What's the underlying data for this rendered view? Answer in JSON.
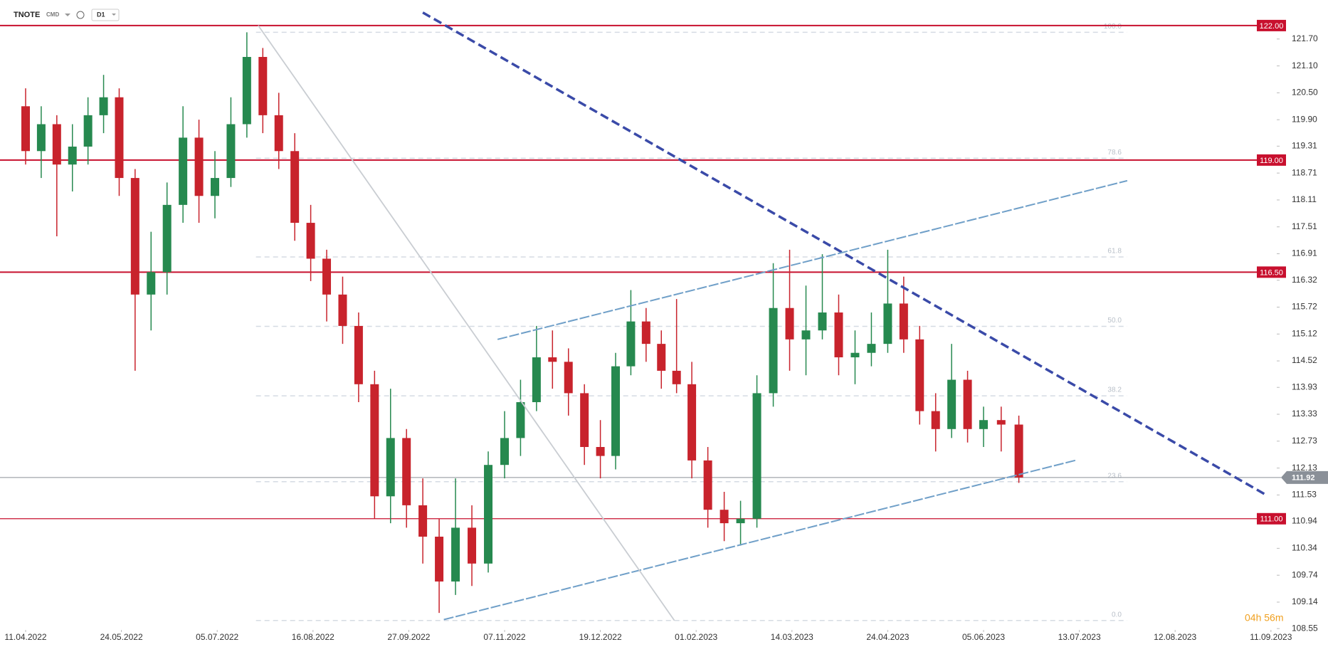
{
  "chart_data": {
    "type": "candlestick",
    "symbol": "TNOTE",
    "market": "CMD",
    "timeframe": "D1",
    "countdown": "04h 56m",
    "up_color": "#26894f",
    "down_color": "#c8232c",
    "ylim": [
      108.52,
      122.57
    ],
    "yticks": [
      {
        "value": 121.7,
        "label": "121.70"
      },
      {
        "value": 121.1,
        "label": "121.10"
      },
      {
        "value": 120.5,
        "label": "120.50"
      },
      {
        "value": 119.9,
        "label": "119.90"
      },
      119.31,
      118.71,
      118.11,
      117.51,
      116.91,
      116.32,
      115.72,
      115.12,
      114.52,
      113.93,
      113.33,
      112.73,
      112.13,
      111.53,
      110.94,
      110.34,
      109.74,
      109.14,
      108.55
    ],
    "xticks": [
      "11.04.2022",
      "24.05.2022",
      "05.07.2022",
      "16.08.2022",
      "27.09.2022",
      "07.11.2022",
      "19.12.2022",
      "01.02.2023",
      "14.03.2023",
      "24.04.2023",
      "05.06.2023",
      "13.07.2023",
      "12.08.2023",
      "11.09.2023"
    ],
    "candles": [
      {
        "x": "11.04.2022",
        "o": 120.2,
        "h": 120.6,
        "l": 118.9,
        "c": 119.2
      },
      {
        "x": "18.04.2022",
        "o": 119.2,
        "h": 120.2,
        "l": 118.6,
        "c": 119.8
      },
      {
        "x": "25.04.2022",
        "o": 119.8,
        "h": 120.0,
        "l": 117.3,
        "c": 118.9
      },
      {
        "x": "02.05.2022",
        "o": 118.9,
        "h": 119.8,
        "l": 118.3,
        "c": 119.3
      },
      {
        "x": "09.05.2022",
        "o": 119.3,
        "h": 120.4,
        "l": 118.9,
        "c": 120.0
      },
      {
        "x": "16.05.2022",
        "o": 120.0,
        "h": 120.9,
        "l": 119.6,
        "c": 120.4
      },
      {
        "x": "23.05.2022",
        "o": 120.4,
        "h": 120.6,
        "l": 118.2,
        "c": 118.6
      },
      {
        "x": "30.05.2022",
        "o": 118.6,
        "h": 118.8,
        "l": 114.3,
        "c": 116.0
      },
      {
        "x": "06.06.2022",
        "o": 116.0,
        "h": 117.4,
        "l": 115.2,
        "c": 116.5
      },
      {
        "x": "13.06.2022",
        "o": 116.5,
        "h": 118.5,
        "l": 116.0,
        "c": 118.0
      },
      {
        "x": "20.06.2022",
        "o": 118.0,
        "h": 120.2,
        "l": 117.6,
        "c": 119.5
      },
      {
        "x": "27.06.2022",
        "o": 119.5,
        "h": 119.9,
        "l": 117.6,
        "c": 118.2
      },
      {
        "x": "04.07.2022",
        "o": 118.2,
        "h": 119.2,
        "l": 117.7,
        "c": 118.6
      },
      {
        "x": "11.07.2022",
        "o": 118.6,
        "h": 120.4,
        "l": 118.4,
        "c": 119.8
      },
      {
        "x": "18.07.2022",
        "o": 119.8,
        "h": 121.85,
        "l": 119.5,
        "c": 121.3
      },
      {
        "x": "25.07.2022",
        "o": 121.3,
        "h": 121.5,
        "l": 119.6,
        "c": 120.0
      },
      {
        "x": "01.08.2022",
        "o": 120.0,
        "h": 120.5,
        "l": 118.8,
        "c": 119.2
      },
      {
        "x": "08.08.2022",
        "o": 119.2,
        "h": 119.6,
        "l": 117.2,
        "c": 117.6
      },
      {
        "x": "15.08.2022",
        "o": 117.6,
        "h": 118.0,
        "l": 116.3,
        "c": 116.8
      },
      {
        "x": "22.08.2022",
        "o": 116.8,
        "h": 117.0,
        "l": 115.4,
        "c": 116.0
      },
      {
        "x": "29.08.2022",
        "o": 116.0,
        "h": 116.4,
        "l": 114.9,
        "c": 115.3
      },
      {
        "x": "05.09.2022",
        "o": 115.3,
        "h": 115.6,
        "l": 113.6,
        "c": 114.0
      },
      {
        "x": "12.09.2022",
        "o": 114.0,
        "h": 114.3,
        "l": 111.0,
        "c": 111.5
      },
      {
        "x": "19.09.2022",
        "o": 111.5,
        "h": 113.9,
        "l": 110.9,
        "c": 112.8
      },
      {
        "x": "26.09.2022",
        "o": 112.8,
        "h": 113.0,
        "l": 110.8,
        "c": 111.3
      },
      {
        "x": "03.10.2022",
        "o": 111.3,
        "h": 111.9,
        "l": 110.0,
        "c": 110.6
      },
      {
        "x": "10.10.2022",
        "o": 110.6,
        "h": 111.0,
        "l": 108.9,
        "c": 109.6
      },
      {
        "x": "17.10.2022",
        "o": 109.6,
        "h": 111.9,
        "l": 109.3,
        "c": 110.8
      },
      {
        "x": "24.10.2022",
        "o": 110.8,
        "h": 111.3,
        "l": 109.5,
        "c": 110.0
      },
      {
        "x": "31.10.2022",
        "o": 110.0,
        "h": 112.5,
        "l": 109.8,
        "c": 112.2
      },
      {
        "x": "07.11.2022",
        "o": 112.2,
        "h": 113.4,
        "l": 111.9,
        "c": 112.8
      },
      {
        "x": "14.11.2022",
        "o": 112.8,
        "h": 114.1,
        "l": 112.4,
        "c": 113.6
      },
      {
        "x": "21.11.2022",
        "o": 113.6,
        "h": 115.3,
        "l": 113.4,
        "c": 114.6
      },
      {
        "x": "28.11.2022",
        "o": 114.6,
        "h": 115.2,
        "l": 113.9,
        "c": 114.5
      },
      {
        "x": "05.12.2022",
        "o": 114.5,
        "h": 114.8,
        "l": 113.3,
        "c": 113.8
      },
      {
        "x": "12.12.2022",
        "o": 113.8,
        "h": 114.0,
        "l": 112.2,
        "c": 112.6
      },
      {
        "x": "19.12.2022",
        "o": 112.6,
        "h": 113.2,
        "l": 111.9,
        "c": 112.4
      },
      {
        "x": "26.12.2022",
        "o": 112.4,
        "h": 114.7,
        "l": 112.1,
        "c": 114.4
      },
      {
        "x": "02.01.2023",
        "o": 114.4,
        "h": 116.1,
        "l": 114.2,
        "c": 115.4
      },
      {
        "x": "09.01.2023",
        "o": 115.4,
        "h": 115.7,
        "l": 114.5,
        "c": 114.9
      },
      {
        "x": "16.01.2023",
        "o": 114.9,
        "h": 115.2,
        "l": 113.9,
        "c": 114.3
      },
      {
        "x": "23.01.2023",
        "o": 114.3,
        "h": 115.9,
        "l": 113.8,
        "c": 114.0
      },
      {
        "x": "30.01.2023",
        "o": 114.0,
        "h": 114.5,
        "l": 111.9,
        "c": 112.3
      },
      {
        "x": "06.02.2023",
        "o": 112.3,
        "h": 112.6,
        "l": 110.8,
        "c": 111.2
      },
      {
        "x": "13.02.2023",
        "o": 111.2,
        "h": 111.6,
        "l": 110.5,
        "c": 110.9
      },
      {
        "x": "20.02.2023",
        "o": 110.9,
        "h": 111.4,
        "l": 110.4,
        "c": 111.0
      },
      {
        "x": "27.02.2023",
        "o": 111.0,
        "h": 114.2,
        "l": 110.8,
        "c": 113.8
      },
      {
        "x": "06.03.2023",
        "o": 113.8,
        "h": 116.7,
        "l": 113.5,
        "c": 115.7
      },
      {
        "x": "13.03.2023",
        "o": 115.7,
        "h": 117.0,
        "l": 114.3,
        "c": 115.0
      },
      {
        "x": "20.03.2023",
        "o": 115.0,
        "h": 116.2,
        "l": 114.2,
        "c": 115.2
      },
      {
        "x": "27.03.2023",
        "o": 115.2,
        "h": 116.9,
        "l": 115.0,
        "c": 115.6
      },
      {
        "x": "03.04.2023",
        "o": 115.6,
        "h": 116.0,
        "l": 114.2,
        "c": 114.6
      },
      {
        "x": "10.04.2023",
        "o": 114.6,
        "h": 115.2,
        "l": 114.0,
        "c": 114.7
      },
      {
        "x": "17.04.2023",
        "o": 114.7,
        "h": 115.6,
        "l": 114.4,
        "c": 114.9
      },
      {
        "x": "24.04.2023",
        "o": 114.9,
        "h": 117.0,
        "l": 114.7,
        "c": 115.8
      },
      {
        "x": "01.05.2023",
        "o": 115.8,
        "h": 116.4,
        "l": 114.7,
        "c": 115.0
      },
      {
        "x": "08.05.2023",
        "o": 115.0,
        "h": 115.3,
        "l": 113.1,
        "c": 113.4
      },
      {
        "x": "15.05.2023",
        "o": 113.4,
        "h": 113.8,
        "l": 112.5,
        "c": 113.0
      },
      {
        "x": "22.05.2023",
        "o": 113.0,
        "h": 114.9,
        "l": 112.8,
        "c": 114.1
      },
      {
        "x": "29.05.2023",
        "o": 114.1,
        "h": 114.3,
        "l": 112.7,
        "c": 113.0
      },
      {
        "x": "05.06.2023",
        "o": 113.0,
        "h": 113.5,
        "l": 112.6,
        "c": 113.2
      },
      {
        "x": "12.06.2023",
        "o": 113.2,
        "h": 113.5,
        "l": 112.5,
        "c": 113.1
      },
      {
        "x": "19.06.2023",
        "o": 113.1,
        "h": 113.3,
        "l": 111.8,
        "c": 111.92
      }
    ],
    "levels": [
      {
        "value": 122,
        "label": "122.00",
        "color": "#c8102e"
      },
      {
        "value": 119,
        "label": "119.00",
        "color": "#c8102e"
      },
      {
        "value": 116.5,
        "label": "116.50",
        "color": "#c8102e"
      },
      {
        "value": 111,
        "label": "111.00",
        "color": "#c8102e"
      }
    ],
    "current_price": 111.92,
    "current_color": "#8a9098",
    "fib": {
      "high": 121.85,
      "low": 108.73,
      "x_start": "22.07.2022",
      "x_end": "28.07.2023",
      "levels": [
        {
          "value": 100,
          "label": "100.0"
        },
        78.6,
        61.8,
        {
          "value": 50,
          "label": "50.0"
        },
        38.2,
        23.6,
        {
          "value": 0,
          "label": "0.0"
        }
      ]
    },
    "trendlines": [
      {
        "x": [
          "03.10.2022",
          "10.09.2023"
        ],
        "y": [
          122.29,
          111.51
        ],
        "color": "#3a4aa8",
        "style": "dashed"
      },
      {
        "x": [
          "04.11.2022",
          "28.07.2023"
        ],
        "y": [
          115.0,
          118.54
        ],
        "color": "#6f9fc8",
        "style": "dash-thin"
      },
      {
        "x": [
          "12.10.2022",
          "12.07.2023"
        ],
        "y": [
          108.75,
          112.31
        ],
        "color": "#6f9fc8",
        "style": "dash-thin"
      },
      {
        "x": [
          "23.07.2022",
          "22.01.2023"
        ],
        "y": [
          122.0,
          108.73
        ],
        "color": "#c9cdd2",
        "style": "solid"
      }
    ]
  }
}
